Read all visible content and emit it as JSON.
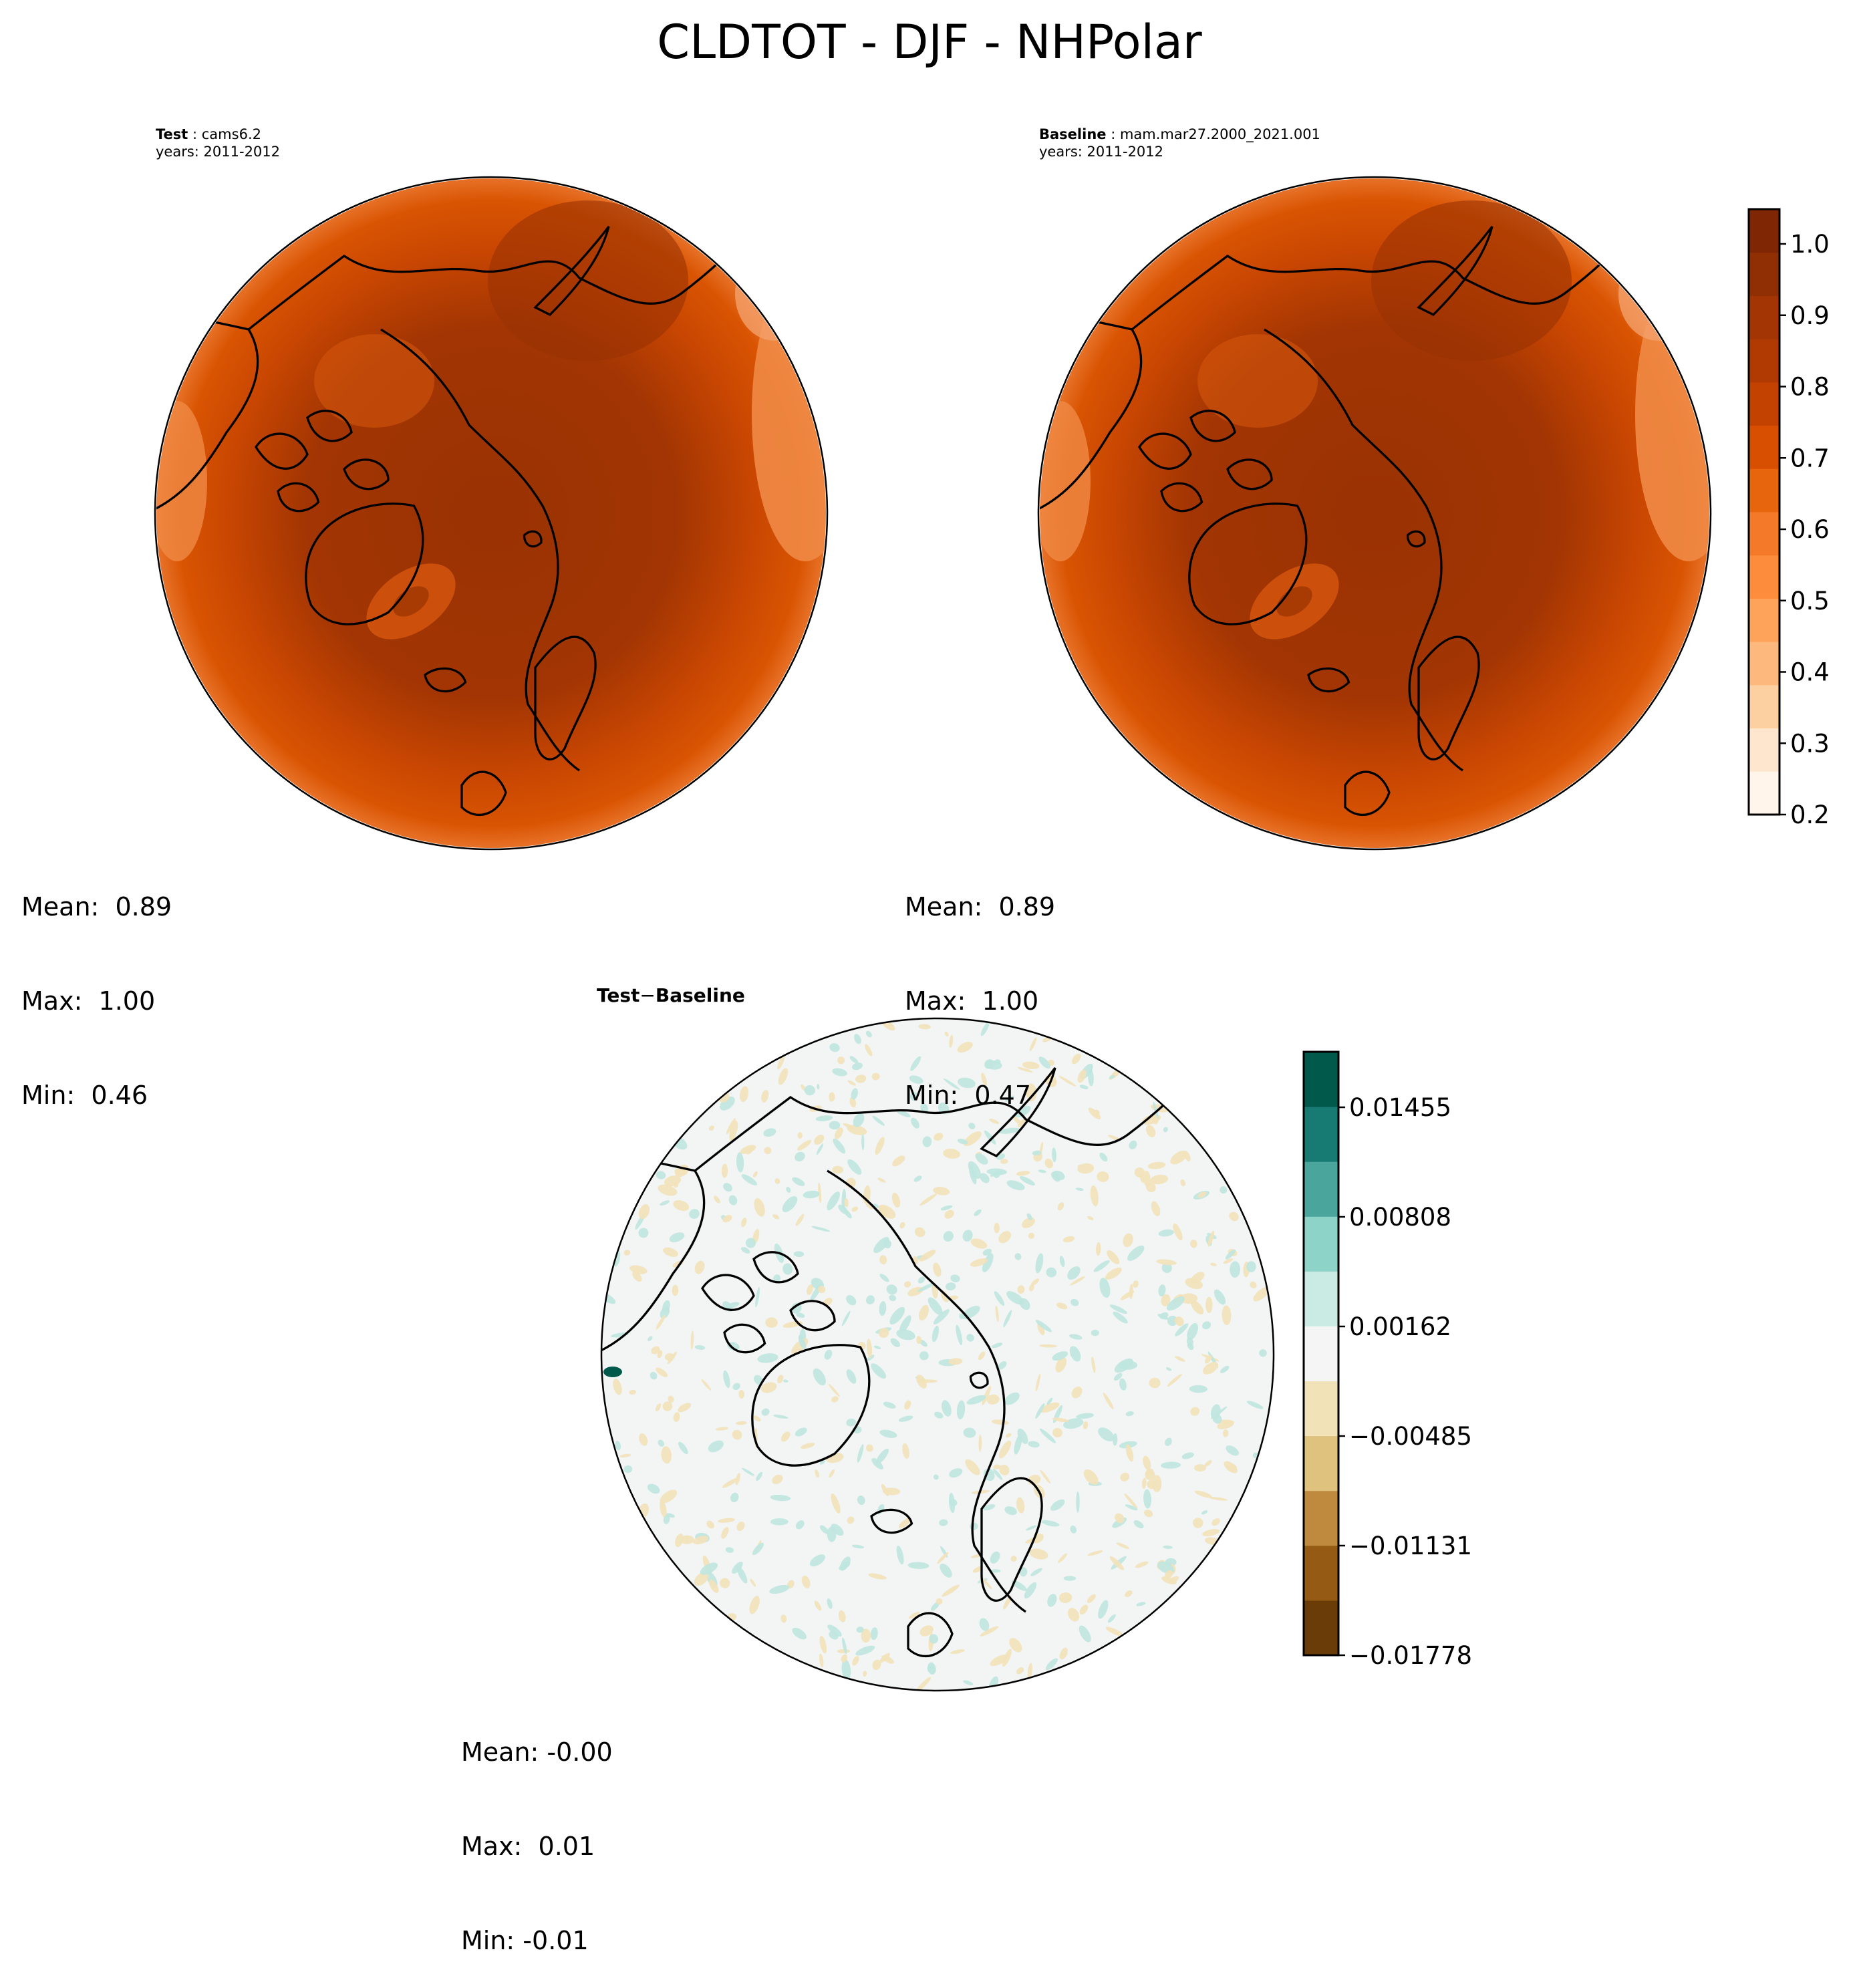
{
  "title": "CLDTOT - DJF - NHPolar",
  "test_panel": {
    "label": "Test",
    "case": "cams6.2",
    "years": "years: 2011-2012",
    "stats": {
      "mean": "Mean:  0.89",
      "max": "Max:  1.00",
      "min": "Min:  0.46"
    }
  },
  "baseline_panel": {
    "label": "Baseline",
    "case": "mam.mar27.2000_2021.001",
    "years": "years: 2011-2012",
    "stats": {
      "mean": "Mean:  0.89",
      "max": "Max:  1.00",
      "min": "Min:  0.47"
    }
  },
  "diff_panel": {
    "title_test": "Test",
    "title_sep": "−",
    "title_base": "Baseline",
    "stats": {
      "mean": "Mean: -0.00",
      "max": "Max:  0.01",
      "min": "Min: -0.01"
    }
  },
  "colorbar_main": {
    "ticks": [
      "1.0",
      "0.9",
      "0.8",
      "0.7",
      "0.6",
      "0.5",
      "0.4",
      "0.3",
      "0.2"
    ],
    "colors": [
      "#fff5eb",
      "#fee6ce",
      "#fdd0a2",
      "#fdb97d",
      "#fda35a",
      "#fd8d3c",
      "#f47a2a",
      "#e6650d",
      "#d94f01",
      "#c44201",
      "#b03a02",
      "#a23503",
      "#8f2f03",
      "#7f2704"
    ],
    "range": [
      0.2,
      1.05
    ]
  },
  "colorbar_diff": {
    "ticks": [
      "0.01455",
      "0.00808",
      "0.00162",
      "−0.00485",
      "−0.01131",
      "−0.01778"
    ],
    "colors": [
      "#6a3d08",
      "#955a14",
      "#bf8a3e",
      "#dfc27d",
      "#f2e2b8",
      "#f4f5f4",
      "#c9ebe4",
      "#8dd3c7",
      "#4aa69c",
      "#177b73",
      "#01594c"
    ],
    "range": [
      -0.01778,
      0.0178
    ]
  },
  "colors": {
    "field_dark": "#9a3203",
    "field_mid": "#c84602",
    "field_light": "#f08a45",
    "diff_bg": "#f2f5f4",
    "diff_pos": "#bfe6df",
    "diff_neg": "#f3e2ba",
    "coast": "#000000"
  }
}
